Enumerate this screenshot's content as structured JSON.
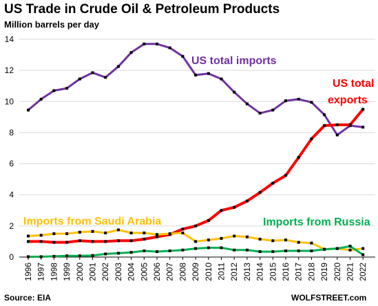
{
  "chart_data": {
    "type": "line",
    "title": "US Trade in Crude Oil & Petroleum Products",
    "ylabel": "Million barrels per day",
    "ylim": [
      0,
      14
    ],
    "yticks": [
      0,
      2,
      4,
      6,
      8,
      10,
      12,
      14
    ],
    "grid": "horizontal",
    "x": [
      "1996",
      "1997",
      "1998",
      "1999",
      "2000",
      "2001",
      "2002",
      "2003",
      "2004",
      "2005",
      "2006",
      "2007",
      "2008",
      "2009",
      "2010",
      "2011",
      "2012",
      "2013",
      "2014",
      "2015",
      "2016",
      "2017",
      "2018",
      "2019",
      "2020",
      "2021",
      "2022"
    ],
    "series": [
      {
        "name": "US total imports",
        "color": "#7030a0",
        "values": [
          9.45,
          10.15,
          10.7,
          10.85,
          11.45,
          11.85,
          11.55,
          12.25,
          13.15,
          13.7,
          13.7,
          13.45,
          12.9,
          11.7,
          11.8,
          11.45,
          10.6,
          9.85,
          9.25,
          9.45,
          10.05,
          10.15,
          9.95,
          9.15,
          7.85,
          8.45,
          8.35
        ]
      },
      {
        "name": "US total exports",
        "color": "#ff0000",
        "values": [
          1.0,
          1.0,
          0.95,
          0.95,
          1.05,
          1.0,
          1.0,
          1.05,
          1.05,
          1.15,
          1.3,
          1.45,
          1.8,
          2.0,
          2.35,
          3.0,
          3.2,
          3.6,
          4.15,
          4.75,
          5.25,
          6.4,
          7.6,
          8.45,
          8.5,
          8.5,
          9.5
        ]
      },
      {
        "name": "Imports from Saudi Arabia",
        "color": "#ffc000",
        "values": [
          1.35,
          1.4,
          1.5,
          1.5,
          1.6,
          1.65,
          1.55,
          1.75,
          1.55,
          1.55,
          1.45,
          1.5,
          1.55,
          1.0,
          1.1,
          1.2,
          1.35,
          1.3,
          1.15,
          1.05,
          1.1,
          0.95,
          0.9,
          0.5,
          0.55,
          0.45,
          0.55
        ]
      },
      {
        "name": "Imports from Russia",
        "color": "#00b050",
        "values": [
          0.02,
          0.02,
          0.05,
          0.08,
          0.08,
          0.1,
          0.2,
          0.25,
          0.3,
          0.4,
          0.35,
          0.4,
          0.45,
          0.55,
          0.6,
          0.6,
          0.45,
          0.45,
          0.35,
          0.35,
          0.4,
          0.4,
          0.4,
          0.5,
          0.55,
          0.7,
          0.15
        ]
      }
    ],
    "source": "Source: EIA",
    "watermark": "WOLFSTREET.com"
  }
}
